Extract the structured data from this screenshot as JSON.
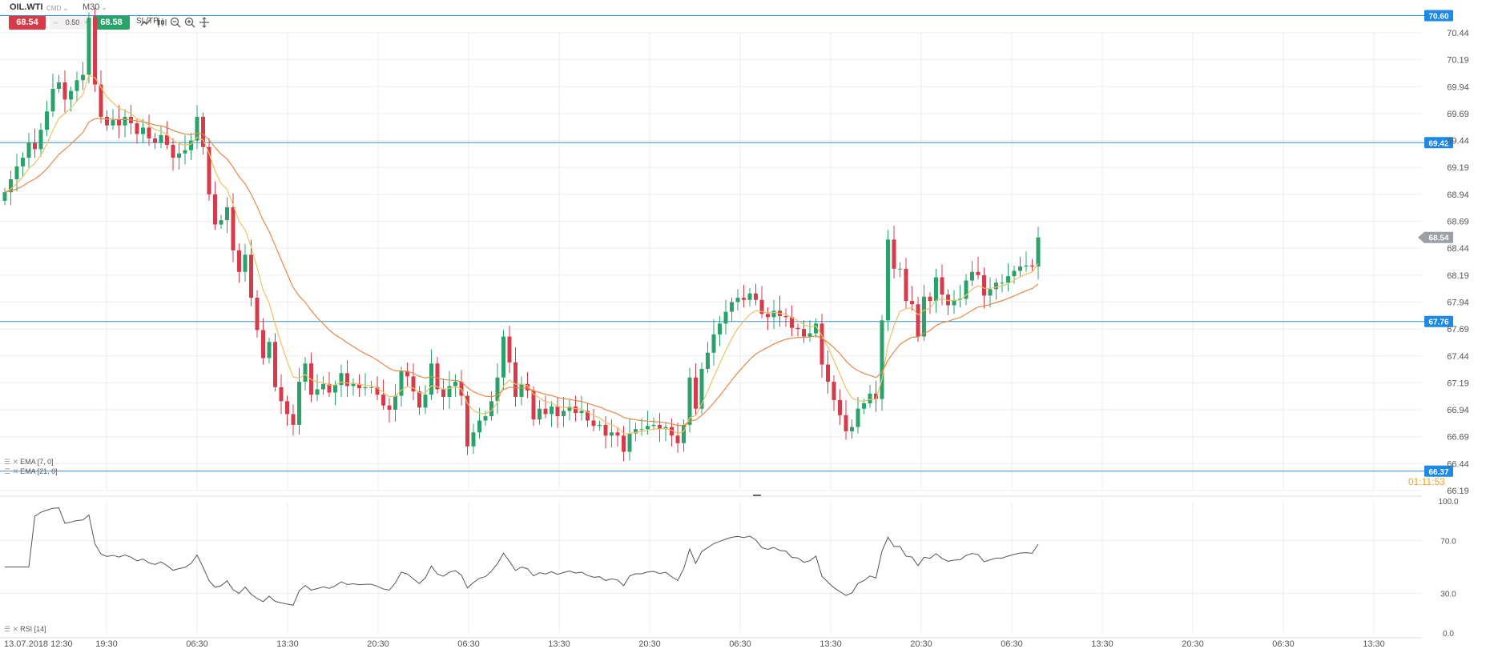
{
  "toolbar": {
    "symbol": "OIL.WTI",
    "market": "CMD",
    "timeframe": "M30",
    "sell_price": "68.54",
    "spread": "0.50",
    "buy_price": "68.58",
    "sltp_label": "SL/TP",
    "icons": [
      "line-chart-icon",
      "candles-icon",
      "zoom-out-icon",
      "zoom-in-icon",
      "crosshair-icon"
    ]
  },
  "indicators": {
    "ema7": "EMA [7, 0]",
    "ema21": "EMA [21, 0]",
    "rsi": "RSI [14]"
  },
  "countdown": "01:11:53",
  "colors": {
    "bull": "#2aa36b",
    "bear": "#d73a49",
    "ema7": "#f0c060",
    "ema21": "#e8884a",
    "level_line": "#3a8ecf",
    "level_tag": "#1e88e5",
    "current_tag": "#9aa0a6",
    "rsi_line": "#555555",
    "grid": "#eeeeee"
  },
  "chart_data": {
    "type": "candlestick",
    "symbol": "OIL.WTI",
    "timeframe": "M30",
    "price_axis": {
      "min": 66.19,
      "max": 70.44,
      "ticks": [
        "70.44",
        "70.19",
        "69.94",
        "69.69",
        "69.44",
        "69.19",
        "68.94",
        "68.69",
        "68.44",
        "68.19",
        "67.94",
        "67.69",
        "67.44",
        "67.19",
        "66.94",
        "66.69",
        "66.44",
        "66.19"
      ]
    },
    "time_axis_labels": [
      "13.07.2018 12:30",
      "19:30",
      "06:30",
      "13:30",
      "20:30",
      "06:30",
      "13:30",
      "20:30",
      "06:30",
      "13:30",
      "20:30",
      "06:30",
      "13:30",
      "20:30",
      "06:30",
      "13:30"
    ],
    "price_levels": [
      "70.60",
      "69.42",
      "67.76",
      "66.37"
    ],
    "current_price": "68.54",
    "candles_close": [
      68.96,
      69.08,
      69.2,
      69.28,
      69.42,
      69.36,
      69.54,
      69.71,
      69.92,
      69.98,
      69.82,
      69.9,
      70.0,
      70.05,
      70.58,
      69.96,
      69.66,
      69.58,
      69.63,
      69.58,
      69.66,
      69.6,
      69.5,
      69.56,
      69.46,
      69.42,
      69.49,
      69.4,
      69.28,
      69.32,
      69.35,
      69.44,
      69.66,
      69.38,
      68.94,
      68.66,
      68.7,
      68.82,
      68.42,
      68.22,
      68.38,
      67.98,
      67.68,
      67.42,
      67.57,
      67.15,
      67.02,
      66.9,
      66.8,
      67.2,
      67.37,
      67.08,
      67.13,
      67.18,
      67.1,
      67.17,
      67.28,
      67.16,
      67.18,
      67.14,
      67.15,
      67.15,
      67.08,
      66.98,
      66.94,
      67.07,
      67.3,
      67.25,
      67.11,
      66.96,
      67.08,
      67.37,
      67.13,
      67.06,
      67.16,
      67.2,
      67.07,
      66.6,
      66.73,
      66.84,
      66.88,
      67.02,
      67.24,
      67.62,
      67.38,
      67.06,
      67.18,
      67.12,
      66.85,
      66.95,
      66.9,
      66.97,
      66.88,
      66.93,
      66.97,
      66.91,
      66.93,
      66.84,
      66.79,
      66.8,
      66.7,
      66.73,
      66.7,
      66.55,
      66.72,
      66.76,
      66.76,
      66.79,
      66.8,
      66.76,
      66.78,
      66.7,
      66.63,
      66.8,
      67.24,
      66.95,
      67.32,
      67.47,
      67.64,
      67.74,
      67.85,
      67.94,
      67.98,
      67.96,
      68.02,
      67.96,
      67.83,
      67.8,
      67.86,
      67.81,
      67.8,
      67.7,
      67.69,
      67.62,
      67.65,
      67.74,
      67.36,
      67.2,
      67.03,
      66.89,
      66.74,
      66.78,
      66.95,
      67.0,
      67.09,
      67.04,
      67.77,
      68.52,
      68.25,
      68.25,
      67.95,
      67.92,
      67.62,
      67.99,
      67.95,
      68.17,
      68.01,
      67.91,
      67.96,
      67.97,
      68.14,
      68.22,
      68.19,
      68.0,
      68.06,
      68.12,
      68.12,
      68.18,
      68.23,
      68.27,
      68.28,
      68.27,
      68.54
    ],
    "ema_series": [
      "EMA [7, 0]",
      "EMA [21, 0]"
    ],
    "rsi_panel": {
      "indicator": "RSI [14]",
      "ticks": [
        "100.0",
        "70.0",
        "30.0",
        "0.0"
      ],
      "min": 0,
      "max": 100
    }
  }
}
